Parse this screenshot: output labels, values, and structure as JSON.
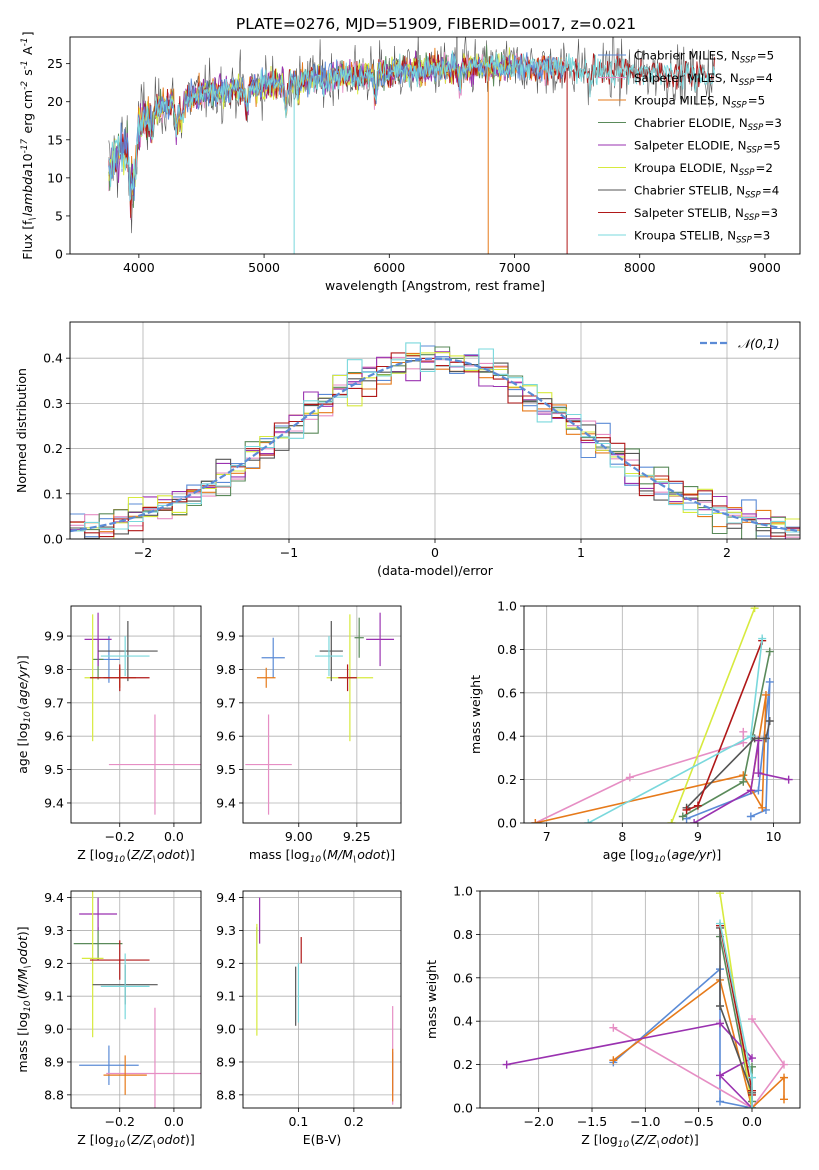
{
  "title": "PLATE=0276, MJD=51909, FIBERID=0017, z=0.021",
  "colors": {
    "chabrier_miles": "#5b8bd6",
    "salpeter_miles": "#e68ec4",
    "kroupa_miles": "#e67a1a",
    "chabrier_elodie": "#5a8a5a",
    "salpeter_elodie": "#9a32b0",
    "kroupa_elodie": "#d7ea3e",
    "chabrier_stelib": "#555555",
    "salpeter_stelib": "#b01818",
    "kroupa_stelib": "#7ad8dc"
  },
  "chart_data": [
    {
      "id": "spectrum",
      "type": "line",
      "xlabel": "wavelength [Angstrom, rest frame]",
      "ylabel": "Flux [f$_\\lambda$10$^{-17}$ erg cm$^{-2}$ s$^{-1}$ A$^{-1}$]",
      "xlim": [
        3450,
        9280
      ],
      "ylim": [
        0,
        28.5
      ],
      "xticks": [
        4000,
        5000,
        6000,
        7000,
        8000,
        9000
      ],
      "yticks": [
        0,
        5,
        10,
        15,
        20,
        25
      ],
      "continuum": {
        "x": [
          3760,
          3800,
          3850,
          3900,
          3950,
          4000,
          4100,
          4200,
          4300,
          4400,
          4500,
          4700,
          4900,
          5100,
          5300,
          5500,
          5700,
          5900,
          6100,
          6300,
          6500,
          6700,
          6900,
          7100,
          7300,
          7500,
          7700,
          8000,
          8300,
          8600,
          8800,
          9000
        ],
        "y": [
          11,
          12.5,
          13.5,
          14,
          12.5,
          17,
          18.5,
          19.5,
          20,
          20.5,
          21,
          21.5,
          22,
          22.5,
          23,
          23.2,
          23.5,
          23.8,
          24.0,
          24.2,
          24.4,
          24.5,
          24.6,
          24.6,
          24.5,
          24.4,
          24.2,
          24.0,
          23.6,
          23.4,
          23.3,
          23.2
        ]
      },
      "series": [
        {
          "name": "Chabrier MILES, N$_{SSP}$=5",
          "color": "#5b8bd6"
        },
        {
          "name": "Salpeter MILES, N$_{SSP}$=4",
          "color": "#e68ec4"
        },
        {
          "name": "Kroupa MILES, N$_{SSP}$=5",
          "color": "#e67a1a"
        },
        {
          "name": "Chabrier ELODIE, N$_{SSP}$=3",
          "color": "#5a8a5a"
        },
        {
          "name": "Salpeter ELODIE, N$_{SSP}$=5",
          "color": "#9a32b0"
        },
        {
          "name": "Kroupa ELODIE, N$_{SSP}$=2",
          "color": "#d7ea3e"
        },
        {
          "name": "Chabrier STELIB, N$_{SSP}$=4",
          "color": "#555555"
        },
        {
          "name": "Salpeter STELIB, N$_{SSP}$=3",
          "color": "#b01818"
        },
        {
          "name": "Kroupa STELIB, N$_{SSP}$=3",
          "color": "#7ad8dc"
        }
      ],
      "legend_loc": "right"
    },
    {
      "id": "residuals",
      "type": "area",
      "xlabel": "(data-model)/error",
      "ylabel": "Normed distribution",
      "xlim": [
        -2.5,
        2.5
      ],
      "ylim": [
        0,
        0.48
      ],
      "xticks": [
        -2,
        -1,
        0,
        1,
        2
      ],
      "yticks": [
        0.0,
        0.1,
        0.2,
        0.3,
        0.4
      ],
      "bin_width": 0.1,
      "grid": true,
      "reference_label": "$\\mathcal{N}(0,1)$",
      "reference_color": "#5b8bd6",
      "legend_loc": "upper right"
    },
    {
      "id": "age_vs_Z",
      "type": "scatter",
      "xlabel": "Z [log$_{10}$($Z/Z_\\odot$)]",
      "ylabel": "age  [log$_{10}$($age/yr$)]",
      "xlim": [
        -0.38,
        0.1
      ],
      "ylim": [
        9.34,
        9.99
      ],
      "xticks": [
        -0.2,
        0.0
      ],
      "yticks": [
        9.4,
        9.5,
        9.6,
        9.7,
        9.8,
        9.9
      ],
      "points": [
        {
          "c": "chabrier_miles",
          "x": -0.24,
          "xerr": 0.04,
          "y": 9.83,
          "yerr": 0.07
        },
        {
          "c": "salpeter_miles",
          "x": -0.07,
          "xerr": 0.17,
          "y": 9.515,
          "yerr": 0.15
        },
        {
          "c": "kroupa_miles",
          "x": -0.2,
          "xerr": 0.06,
          "y": 9.775,
          "yerr": 0.03
        },
        {
          "c": "chabrier_elodie",
          "x": -0.28,
          "xerr": 0.02,
          "y": 9.83,
          "yerr": 0.06
        },
        {
          "c": "salpeter_elodie",
          "x": -0.28,
          "xerr": 0.05,
          "y": 9.89,
          "yerr": 0.08
        },
        {
          "c": "kroupa_elodie",
          "x": -0.3,
          "xerr": 0.03,
          "y": 9.775,
          "yerr": 0.19
        },
        {
          "c": "chabrier_stelib",
          "x": -0.17,
          "xerr": 0.11,
          "y": 9.855,
          "yerr": 0.09
        },
        {
          "c": "salpeter_stelib",
          "x": -0.2,
          "xerr": 0.11,
          "y": 9.775,
          "yerr": 0.04
        },
        {
          "c": "kroupa_stelib",
          "x": -0.18,
          "xerr": 0.09,
          "y": 9.84,
          "yerr": 0.06
        }
      ]
    },
    {
      "id": "age_vs_mass",
      "type": "scatter",
      "xlabel": "mass [log$_{10}$($M/M_\\odot$)]",
      "ylabel": "",
      "xlim": [
        8.76,
        9.44
      ],
      "ylim": [
        9.34,
        9.99
      ],
      "xticks": [
        9.0,
        9.25
      ],
      "yticks": [
        9.4,
        9.5,
        9.6,
        9.7,
        9.8,
        9.9
      ],
      "points": [
        {
          "c": "chabrier_miles",
          "x": 8.89,
          "xerr": 0.05,
          "y": 9.835,
          "yerr": 0.06
        },
        {
          "c": "salpeter_miles",
          "x": 8.87,
          "xerr": 0.1,
          "y": 9.515,
          "yerr": 0.15
        },
        {
          "c": "kroupa_miles",
          "x": 8.86,
          "xerr": 0.04,
          "y": 9.775,
          "yerr": 0.03
        },
        {
          "c": "chabrier_elodie",
          "x": 9.26,
          "xerr": 0.02,
          "y": 9.895,
          "yerr": 0.06
        },
        {
          "c": "salpeter_elodie",
          "x": 9.35,
          "xerr": 0.06,
          "y": 9.89,
          "yerr": 0.08
        },
        {
          "c": "kroupa_elodie",
          "x": 9.22,
          "xerr": 0.1,
          "y": 9.775,
          "yerr": 0.19
        },
        {
          "c": "chabrier_stelib",
          "x": 9.14,
          "xerr": 0.05,
          "y": 9.855,
          "yerr": 0.09
        },
        {
          "c": "salpeter_stelib",
          "x": 9.21,
          "xerr": 0.04,
          "y": 9.775,
          "yerr": 0.04
        },
        {
          "c": "kroupa_stelib",
          "x": 9.13,
          "xerr": 0.06,
          "y": 9.84,
          "yerr": 0.06
        }
      ]
    },
    {
      "id": "weight_vs_age",
      "type": "line",
      "xlabel": "age  [log$_{10}$($age/yr$)]",
      "ylabel": "mass weight",
      "xlim": [
        6.7,
        10.35
      ],
      "ylim": [
        0,
        1.0
      ],
      "xticks": [
        7,
        8,
        9,
        10
      ],
      "yticks": [
        0.0,
        0.2,
        0.4,
        0.6,
        0.8,
        1.0
      ],
      "series": [
        {
          "c": "chabrier_miles",
          "x": [
            9.7,
            9.9,
            9.95,
            9.8,
            8.85
          ],
          "y": [
            0.03,
            0.06,
            0.65,
            0.15,
            0.02
          ]
        },
        {
          "c": "salpeter_miles",
          "x": [
            6.85,
            8.1,
            9.6,
            9.6
          ],
          "y": [
            0.0,
            0.21,
            0.37,
            0.42
          ]
        },
        {
          "c": "kroupa_miles",
          "x": [
            6.85,
            9.6,
            9.85,
            9.9,
            9.7
          ],
          "y": [
            0.0,
            0.22,
            0.07,
            0.59,
            0.15
          ]
        },
        {
          "c": "chabrier_elodie",
          "x": [
            8.8,
            9.6,
            9.95
          ],
          "y": [
            0.03,
            0.19,
            0.79
          ]
        },
        {
          "c": "salpeter_elodie",
          "x": [
            8.95,
            9.7,
            9.8,
            9.8,
            10.2
          ],
          "y": [
            0.0,
            0.15,
            0.38,
            0.23,
            0.2
          ]
        },
        {
          "c": "kroupa_elodie",
          "x": [
            8.65,
            9.75
          ],
          "y": [
            0.0,
            0.99
          ]
        },
        {
          "c": "chabrier_stelib",
          "x": [
            8.85,
            9.75,
            9.9,
            9.95
          ],
          "y": [
            0.07,
            0.39,
            0.39,
            0.47
          ]
        },
        {
          "c": "salpeter_stelib",
          "x": [
            8.85,
            9.0,
            9.85
          ],
          "y": [
            0.06,
            0.08,
            0.84
          ]
        },
        {
          "c": "kroupa_stelib",
          "x": [
            7.55,
            9.7,
            9.85
          ],
          "y": [
            0.0,
            0.4,
            0.85
          ]
        }
      ]
    },
    {
      "id": "mass_vs_Z",
      "type": "scatter",
      "xlabel": "Z [log$_{10}$($Z/Z_\\odot$)]",
      "ylabel": "mass [log$_{10}$($M/M_\\odot$)]",
      "xlim": [
        -0.38,
        0.1
      ],
      "ylim": [
        8.76,
        9.42
      ],
      "xticks": [
        -0.2,
        0.0
      ],
      "yticks": [
        8.8,
        8.9,
        9.0,
        9.1,
        9.2,
        9.3,
        9.4
      ],
      "points": [
        {
          "c": "chabrier_miles",
          "x": -0.24,
          "xerr": 0.11,
          "y": 8.89,
          "yerr": 0.06
        },
        {
          "c": "salpeter_miles",
          "x": -0.07,
          "xerr": 0.18,
          "y": 8.865,
          "yerr": 0.2
        },
        {
          "c": "kroupa_miles",
          "x": -0.18,
          "xerr": 0.08,
          "y": 8.86,
          "yerr": 0.06
        },
        {
          "c": "chabrier_elodie",
          "x": -0.28,
          "xerr": 0.09,
          "y": 9.26,
          "yerr": 0.05
        },
        {
          "c": "salpeter_elodie",
          "x": -0.28,
          "xerr": 0.07,
          "y": 9.35,
          "yerr": 0.05
        },
        {
          "c": "kroupa_elodie",
          "x": -0.3,
          "xerr": 0.04,
          "y": 9.215,
          "yerr": 0.24
        },
        {
          "c": "chabrier_stelib",
          "x": -0.18,
          "xerr": 0.12,
          "y": 9.135,
          "yerr": 0.06
        },
        {
          "c": "salpeter_stelib",
          "x": -0.2,
          "xerr": 0.11,
          "y": 9.21,
          "yerr": 0.06
        },
        {
          "c": "kroupa_stelib",
          "x": -0.18,
          "xerr": 0.09,
          "y": 9.13,
          "yerr": 0.1
        }
      ]
    },
    {
      "id": "mass_vs_ebv",
      "type": "scatter",
      "xlabel": "E(B-V)",
      "ylabel": "",
      "xlim": [
        0.0,
        0.285
      ],
      "ylim": [
        8.76,
        9.42
      ],
      "xticks": [
        0.1,
        0.2
      ],
      "yticks": [
        8.8,
        8.9,
        9.0,
        9.1,
        9.2,
        9.3,
        9.4
      ],
      "points": [
        {
          "c": "chabrier_miles",
          "x": 0.27,
          "xerr": 0.0,
          "y": 8.87,
          "yerr": 0.06
        },
        {
          "c": "salpeter_miles",
          "x": 0.27,
          "xerr": 0.0,
          "y": 8.92,
          "yerr": 0.15
        },
        {
          "c": "kroupa_miles",
          "x": 0.27,
          "xerr": 0.0,
          "y": 8.86,
          "yerr": 0.08
        },
        {
          "c": "chabrier_elodie",
          "x": 0.025,
          "xerr": 0.0,
          "y": 9.26,
          "yerr": 0.05
        },
        {
          "c": "salpeter_elodie",
          "x": 0.03,
          "xerr": 0.0,
          "y": 9.33,
          "yerr": 0.07
        },
        {
          "c": "kroupa_elodie",
          "x": 0.025,
          "xerr": 0.0,
          "y": 9.15,
          "yerr": 0.17
        },
        {
          "c": "chabrier_stelib",
          "x": 0.095,
          "xerr": 0.0,
          "y": 9.1,
          "yerr": 0.09
        },
        {
          "c": "salpeter_stelib",
          "x": 0.105,
          "xerr": 0.0,
          "y": 9.24,
          "yerr": 0.04
        },
        {
          "c": "kroupa_stelib",
          "x": 0.1,
          "xerr": 0.0,
          "y": 9.11,
          "yerr": 0.09
        }
      ]
    },
    {
      "id": "weight_vs_Z",
      "type": "line",
      "xlabel": "Z [log$_{10}$($Z/Z_\\odot$)]",
      "ylabel": "mass weight",
      "xlim": [
        -2.55,
        0.45
      ],
      "ylim": [
        0,
        1.0
      ],
      "xticks": [
        -2.0,
        -1.5,
        -1.0,
        -0.5,
        0.0
      ],
      "yticks": [
        0.0,
        0.2,
        0.4,
        0.6,
        0.8,
        1.0
      ],
      "series": [
        {
          "c": "chabrier_miles",
          "x": [
            -1.3,
            -0.3,
            -0.3,
            0.0
          ],
          "y": [
            0.21,
            0.64,
            0.03,
            0.0
          ]
        },
        {
          "c": "salpeter_miles",
          "x": [
            -1.3,
            0.0,
            0.3,
            0.0
          ],
          "y": [
            0.37,
            0.0,
            0.2,
            0.41
          ]
        },
        {
          "c": "kroupa_miles",
          "x": [
            -1.3,
            -0.3,
            0.0,
            0.3,
            0.3
          ],
          "y": [
            0.22,
            0.59,
            0.0,
            0.14,
            0.04
          ]
        },
        {
          "c": "chabrier_elodie",
          "x": [
            -0.3,
            0.0,
            0.0
          ],
          "y": [
            0.79,
            0.03,
            0.19
          ]
        },
        {
          "c": "salpeter_elodie",
          "x": [
            -2.3,
            -0.3,
            0.0,
            -0.3,
            0.0
          ],
          "y": [
            0.2,
            0.39,
            0.23,
            0.15,
            0.0
          ]
        },
        {
          "c": "kroupa_elodie",
          "x": [
            -0.3,
            0.0
          ],
          "y": [
            0.99,
            0.0
          ]
        },
        {
          "c": "chabrier_stelib",
          "x": [
            -0.3,
            -0.3,
            0.0,
            0.0
          ],
          "y": [
            0.83,
            0.47,
            0.07,
            0.0
          ]
        },
        {
          "c": "salpeter_stelib",
          "x": [
            -0.3,
            0.0,
            0.0
          ],
          "y": [
            0.84,
            0.08,
            0.06
          ]
        },
        {
          "c": "kroupa_stelib",
          "x": [
            -0.3,
            0.0,
            0.0
          ],
          "y": [
            0.85,
            0.14,
            0.0
          ]
        }
      ]
    }
  ]
}
